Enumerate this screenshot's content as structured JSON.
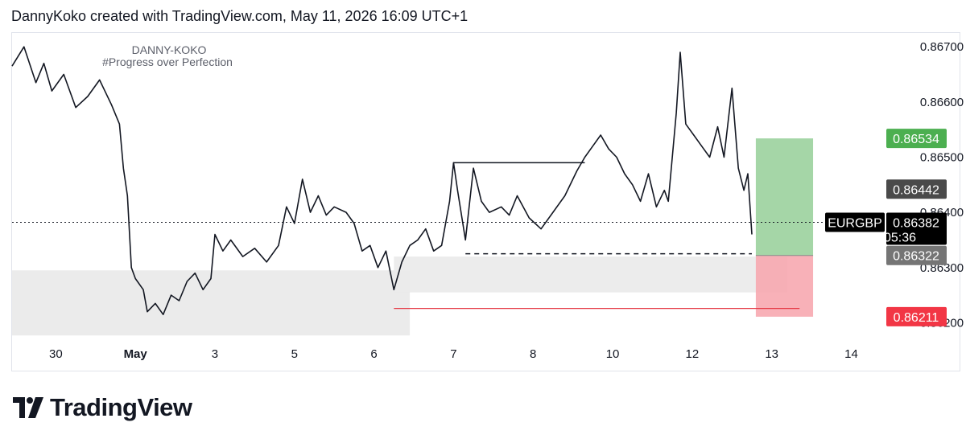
{
  "header": {
    "caption": "DannyKoko created with TradingView.com, May 11, 2026 16:09 UTC+1"
  },
  "watermark": {
    "line1": "DANNY-KOKO",
    "line2": "#Progress over Perfection"
  },
  "brand": {
    "name": "TradingView"
  },
  "colors": {
    "candle": "#131722",
    "profit": "#a5d6a7",
    "profit_tag": "#4caf50",
    "loss": "#f7a8b0",
    "loss_tag": "#f23645",
    "zone": "#ebebeb",
    "entry_tag": "#757575",
    "level_tag": "#4a4a4a",
    "price_tag": "#000000"
  },
  "chart_data": {
    "type": "line",
    "symbol": "EURGBP",
    "y_ticks": [
      "0.86700",
      "0.86600",
      "0.86500",
      "0.86400",
      "0.86300",
      "0.86200"
    ],
    "ylim": [
      0.86173,
      0.86725
    ],
    "x_ticks": [
      {
        "label": "30",
        "t": 0.2,
        "bold": false
      },
      {
        "label": "May",
        "t": 1.2,
        "bold": true
      },
      {
        "label": "3",
        "t": 2.2,
        "bold": false
      },
      {
        "label": "5",
        "t": 3.2,
        "bold": false
      },
      {
        "label": "6",
        "t": 4.2,
        "bold": false
      },
      {
        "label": "7",
        "t": 5.2,
        "bold": false
      },
      {
        "label": "8",
        "t": 6.2,
        "bold": false
      },
      {
        "label": "10",
        "t": 7.2,
        "bold": false
      },
      {
        "label": "12",
        "t": 8.2,
        "bold": false
      },
      {
        "label": "13",
        "t": 9.2,
        "bold": false
      },
      {
        "label": "14",
        "t": 10.2,
        "bold": false
      }
    ],
    "xlim": [
      -0.35,
      10.6
    ],
    "series": [
      {
        "values": [
          [
            -0.35,
            0.86665
          ],
          [
            -0.2,
            0.867
          ],
          [
            -0.05,
            0.86635
          ],
          [
            0.05,
            0.8667
          ],
          [
            0.15,
            0.8662
          ],
          [
            0.3,
            0.8665
          ],
          [
            0.45,
            0.8659
          ],
          [
            0.6,
            0.8661
          ],
          [
            0.75,
            0.8664
          ],
          [
            0.9,
            0.86595
          ],
          [
            1.0,
            0.8656
          ],
          [
            1.05,
            0.8648
          ],
          [
            1.1,
            0.8643
          ],
          [
            1.15,
            0.863
          ],
          [
            1.2,
            0.8628
          ],
          [
            1.3,
            0.8626
          ],
          [
            1.35,
            0.8622
          ],
          [
            1.45,
            0.86235
          ],
          [
            1.55,
            0.86215
          ],
          [
            1.65,
            0.8625
          ],
          [
            1.75,
            0.8624
          ],
          [
            1.85,
            0.86275
          ],
          [
            1.95,
            0.8629
          ],
          [
            2.05,
            0.8626
          ],
          [
            2.15,
            0.8628
          ],
          [
            2.2,
            0.8636
          ],
          [
            2.3,
            0.8633
          ],
          [
            2.4,
            0.8635
          ],
          [
            2.55,
            0.8632
          ],
          [
            2.7,
            0.86335
          ],
          [
            2.85,
            0.8631
          ],
          [
            3.0,
            0.8634
          ],
          [
            3.1,
            0.8641
          ],
          [
            3.2,
            0.8638
          ],
          [
            3.3,
            0.8646
          ],
          [
            3.4,
            0.864
          ],
          [
            3.5,
            0.8643
          ],
          [
            3.6,
            0.86395
          ],
          [
            3.7,
            0.8641
          ],
          [
            3.85,
            0.864
          ],
          [
            3.95,
            0.8638
          ],
          [
            4.05,
            0.8633
          ],
          [
            4.15,
            0.8634
          ],
          [
            4.25,
            0.863
          ],
          [
            4.35,
            0.8633
          ],
          [
            4.45,
            0.8626
          ],
          [
            4.55,
            0.8631
          ],
          [
            4.65,
            0.8634
          ],
          [
            4.75,
            0.8635
          ],
          [
            4.85,
            0.8637
          ],
          [
            4.95,
            0.8633
          ],
          [
            5.05,
            0.8634
          ],
          [
            5.15,
            0.8642
          ],
          [
            5.2,
            0.8649
          ],
          [
            5.25,
            0.8644
          ],
          [
            5.35,
            0.8635
          ],
          [
            5.45,
            0.8648
          ],
          [
            5.55,
            0.8642
          ],
          [
            5.65,
            0.864
          ],
          [
            5.8,
            0.8641
          ],
          [
            5.9,
            0.86395
          ],
          [
            6.0,
            0.8643
          ],
          [
            6.15,
            0.8639
          ],
          [
            6.3,
            0.8637
          ],
          [
            6.45,
            0.864
          ],
          [
            6.6,
            0.8643
          ],
          [
            6.75,
            0.86475
          ],
          [
            6.85,
            0.865
          ],
          [
            6.95,
            0.8652
          ],
          [
            7.05,
            0.8654
          ],
          [
            7.15,
            0.86515
          ],
          [
            7.25,
            0.865
          ],
          [
            7.35,
            0.8647
          ],
          [
            7.45,
            0.8645
          ],
          [
            7.55,
            0.8642
          ],
          [
            7.65,
            0.8647
          ],
          [
            7.75,
            0.8641
          ],
          [
            7.85,
            0.8644
          ],
          [
            7.9,
            0.8642
          ],
          [
            8.0,
            0.8658
          ],
          [
            8.05,
            0.8669
          ],
          [
            8.12,
            0.8656
          ],
          [
            8.22,
            0.8654
          ],
          [
            8.32,
            0.8652
          ],
          [
            8.42,
            0.865
          ],
          [
            8.52,
            0.86555
          ],
          [
            8.6,
            0.865
          ],
          [
            8.7,
            0.86625
          ],
          [
            8.78,
            0.8648
          ],
          [
            8.85,
            0.8644
          ],
          [
            8.9,
            0.8647
          ],
          [
            8.95,
            0.8636
          ]
        ]
      }
    ],
    "levels": [
      {
        "name": "target",
        "value": 0.86534,
        "label": "0.86534"
      },
      {
        "name": "current",
        "value": 0.86382,
        "label": "0.86382",
        "countdown": "05:36"
      },
      {
        "name": "entry",
        "value": 0.86322,
        "label": "0.86322"
      },
      {
        "name": "stop",
        "value": 0.86211,
        "label": "0.86211"
      },
      {
        "name": "prior",
        "value": 0.86442,
        "label": "0.86442"
      }
    ],
    "position": {
      "start": 9.0,
      "end": 9.72
    },
    "drawings": {
      "swing_high_line": {
        "from": 5.2,
        "to": 6.85,
        "value": 0.8649
      },
      "swing_low_dashed": {
        "from": 5.35,
        "to": 8.95,
        "value": 0.86325
      },
      "sweep_red_line": {
        "from": 4.45,
        "to": 9.55,
        "value": 0.86226
      },
      "zone_left": {
        "from": -0.35,
        "to": 4.65,
        "top": 0.86295,
        "bottom": 0.86177
      },
      "zone_mid": {
        "from": 4.45,
        "to": 9.4,
        "top": 0.8632,
        "bottom": 0.86255
      }
    }
  }
}
